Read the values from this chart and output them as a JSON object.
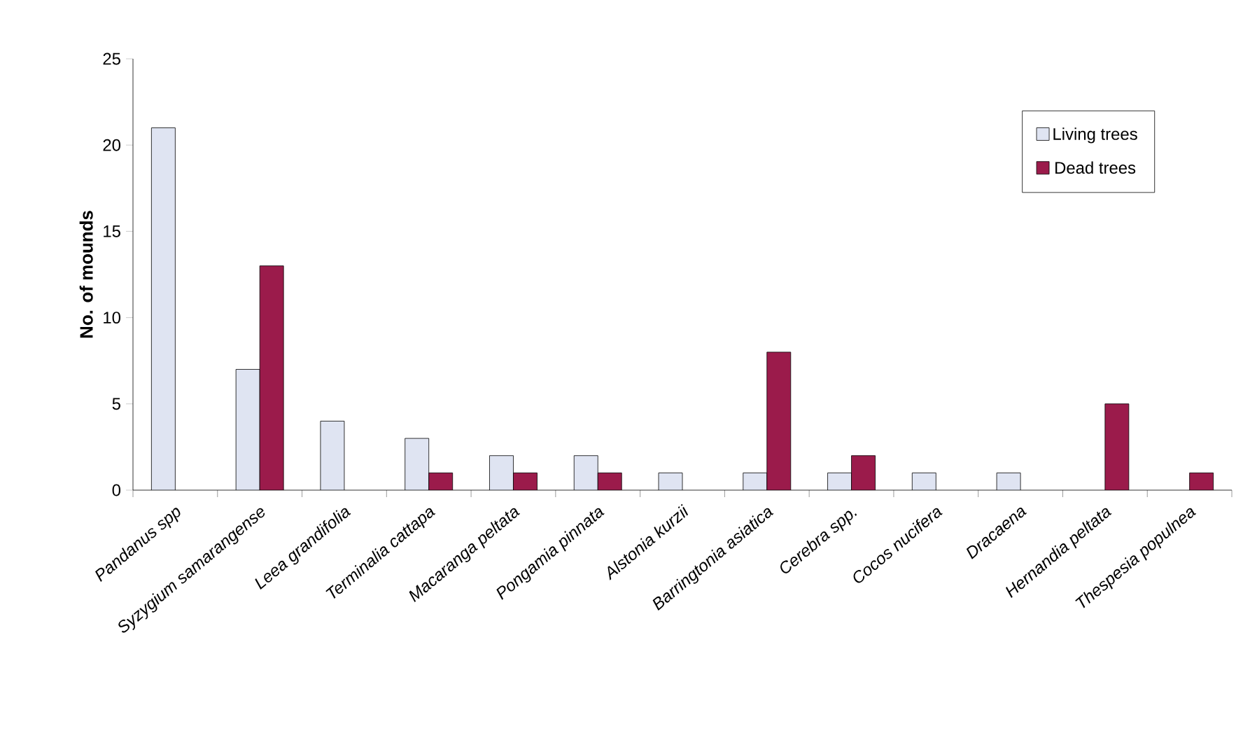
{
  "chart_data": {
    "type": "bar",
    "ylabel": "No. of mounds",
    "categories": [
      "Pandanus spp",
      "Syzygium samarangense",
      "Leea grandifolia",
      "Terminalia cattapa",
      "Macaranga peltata",
      "Pongamia pinnata",
      "Alstonia kurzii",
      "Barringtonia asiatica",
      "Cerebra spp.",
      "Cocos nucifera",
      "Dracaena",
      "Hernandia peltata",
      "Thespesia populnea"
    ],
    "series": [
      {
        "name": "Living trees",
        "color": "#dfe4f2",
        "values": [
          21,
          7,
          4,
          3,
          2,
          2,
          1,
          1,
          1,
          1,
          1,
          null,
          null
        ]
      },
      {
        "name": "Dead trees",
        "color": "#9b1b4b",
        "values": [
          null,
          13,
          null,
          1,
          1,
          1,
          null,
          8,
          2,
          null,
          null,
          5,
          1
        ]
      }
    ],
    "ylim": [
      0,
      25
    ],
    "yticks": [
      0,
      5,
      10,
      15,
      20,
      25
    ],
    "grid": false,
    "legend": "top right"
  }
}
